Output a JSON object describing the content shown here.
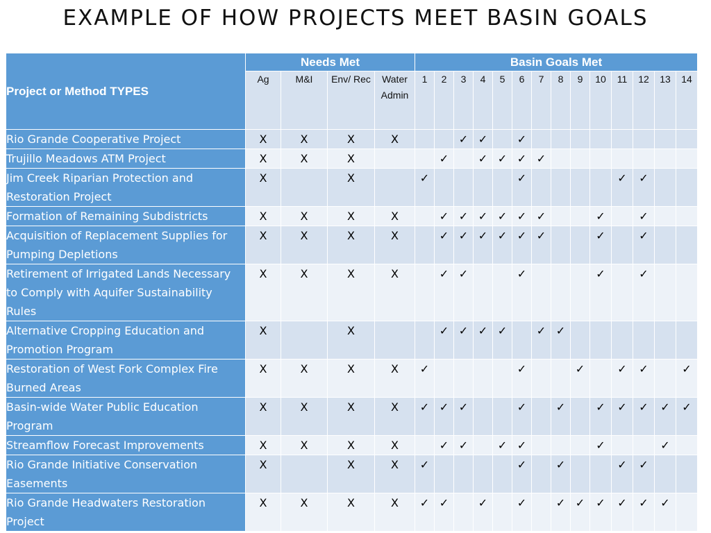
{
  "title": "EXAMPLE OF HOW PROJECTS MEET BASIN GOALS",
  "header": {
    "type_label": "Project or Method TYPES",
    "needs_label": "Needs Met",
    "goals_label": "Basin Goals Met",
    "needs": [
      "Ag",
      "M&I",
      "Env/ Rec",
      "Water Admin"
    ],
    "goals": [
      "1",
      "2",
      "3",
      "4",
      "5",
      "6",
      "7",
      "8",
      "9",
      "10",
      "11",
      "12",
      "13",
      "14"
    ]
  },
  "rows": [
    {
      "name": "Rio Grande Cooperative Project",
      "needs": [
        "X",
        "X",
        "X",
        "X"
      ],
      "goals": [
        "",
        "",
        "✓",
        "✓",
        "",
        "✓",
        "",
        "",
        "",
        "",
        "",
        "",
        "",
        ""
      ]
    },
    {
      "name": "Trujillo Meadows ATM Project",
      "needs": [
        "X",
        "X",
        "X",
        ""
      ],
      "goals": [
        "",
        "✓",
        "",
        "✓",
        "✓",
        "✓",
        "✓",
        "",
        "",
        "",
        "",
        "",
        "",
        ""
      ]
    },
    {
      "name": "Jim Creek Riparian Protection and Restoration Project",
      "needs": [
        "X",
        "",
        "X",
        ""
      ],
      "goals": [
        "✓",
        "",
        "",
        "",
        "",
        "✓",
        "",
        "",
        "",
        "",
        "✓",
        "✓",
        "",
        ""
      ]
    },
    {
      "name": "Formation of Remaining Subdistricts",
      "needs": [
        "X",
        "X",
        "X",
        "X"
      ],
      "goals": [
        "",
        "✓",
        "✓",
        "✓",
        "✓",
        "✓",
        "✓",
        "",
        "",
        "✓",
        "",
        "✓",
        "",
        ""
      ]
    },
    {
      "name": "Acquisition of Replacement Supplies for Pumping Depletions",
      "needs": [
        "X",
        "X",
        "X",
        "X"
      ],
      "goals": [
        "",
        "✓",
        "✓",
        "✓",
        "✓",
        "✓",
        "✓",
        "",
        "",
        "✓",
        "",
        "✓",
        "",
        ""
      ]
    },
    {
      "name": "Retirement of Irrigated Lands Necessary to Comply with Aquifer Sustainability Rules",
      "needs": [
        "X",
        "X",
        "X",
        "X"
      ],
      "goals": [
        "",
        "✓",
        "✓",
        "",
        "",
        "✓",
        "",
        "",
        "",
        "✓",
        "",
        "✓",
        "",
        ""
      ]
    },
    {
      "name": "Alternative Cropping Education and Promotion Program",
      "needs": [
        "X",
        "",
        "X",
        ""
      ],
      "goals": [
        "",
        "✓",
        "✓",
        "✓",
        "✓",
        "",
        "✓",
        "✓",
        "",
        "",
        "",
        "",
        "",
        ""
      ]
    },
    {
      "name": "Restoration of West Fork Complex Fire Burned Areas",
      "needs": [
        "X",
        "X",
        "X",
        "X"
      ],
      "goals": [
        "✓",
        "",
        "",
        "",
        "",
        "✓",
        "",
        "",
        "✓",
        "",
        "✓",
        "✓",
        "",
        "✓"
      ]
    },
    {
      "name": "Basin-wide Water Public Education Program",
      "needs": [
        "X",
        "X",
        "X",
        "X"
      ],
      "goals": [
        "✓",
        "✓",
        "✓",
        "",
        "",
        "✓",
        "",
        "✓",
        "",
        "✓",
        "✓",
        "✓",
        "✓",
        "✓"
      ]
    },
    {
      "name": "Streamflow Forecast Improvements",
      "needs": [
        "X",
        "X",
        "X",
        "X"
      ],
      "goals": [
        "",
        "✓",
        "✓",
        "",
        "✓",
        "✓",
        "",
        "",
        "",
        "✓",
        "",
        "",
        "✓",
        ""
      ]
    },
    {
      "name": "Rio Grande Initiative Conservation Easements",
      "needs": [
        "X",
        "",
        "X",
        "X"
      ],
      "goals": [
        "✓",
        "",
        "",
        "",
        "",
        "✓",
        "",
        "✓",
        "",
        "",
        "✓",
        "✓",
        "",
        ""
      ]
    },
    {
      "name": "Rio Grande Headwaters Restoration Project",
      "needs": [
        "X",
        "X",
        "X",
        "X"
      ],
      "goals": [
        "✓",
        "✓",
        "",
        "✓",
        "",
        "✓",
        "",
        "✓",
        "✓",
        "✓",
        "✓",
        "✓",
        "✓",
        ""
      ]
    }
  ]
}
